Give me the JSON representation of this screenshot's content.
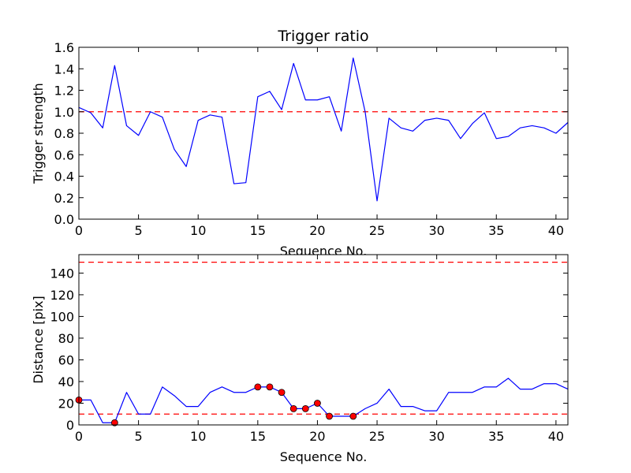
{
  "chart_data": [
    {
      "type": "line",
      "title": "Trigger ratio",
      "xlabel": "Sequence No.",
      "ylabel": "Trigger strength",
      "xlim": [
        0,
        41
      ],
      "ylim": [
        0,
        1.6
      ],
      "xticks": [
        0,
        5,
        10,
        15,
        20,
        25,
        30,
        35,
        40
      ],
      "yticks": [
        0.0,
        0.2,
        0.4,
        0.6,
        0.8,
        1.0,
        1.2,
        1.4,
        1.6
      ],
      "ytick_labels": [
        "0.0",
        "0.2",
        "0.4",
        "0.6",
        "0.8",
        "1.0",
        "1.2",
        "1.4",
        "1.6"
      ],
      "line_color": "#0000ff",
      "threshold_color": "#ff0000",
      "hlines": [
        1.0
      ],
      "series": [
        {
          "name": "trigger strength",
          "x": [
            0,
            1,
            2,
            3,
            4,
            5,
            6,
            7,
            8,
            9,
            10,
            11,
            12,
            13,
            14,
            15,
            16,
            17,
            18,
            19,
            20,
            21,
            22,
            23,
            24,
            25,
            26,
            27,
            28,
            29,
            30,
            31,
            32,
            33,
            34,
            35,
            36,
            37,
            38,
            39,
            40,
            41
          ],
          "y": [
            1.04,
            0.99,
            0.85,
            1.43,
            0.87,
            0.78,
            1.0,
            0.95,
            0.65,
            0.49,
            0.92,
            0.97,
            0.95,
            0.33,
            0.34,
            1.14,
            1.19,
            1.02,
            1.45,
            1.11,
            1.11,
            1.14,
            0.82,
            1.5,
            1.0,
            0.17,
            0.94,
            0.85,
            0.82,
            0.92,
            0.94,
            0.92,
            0.75,
            0.89,
            0.99,
            0.75,
            0.77,
            0.85,
            0.87,
            0.85,
            0.8,
            0.9
          ]
        }
      ],
      "markers": []
    },
    {
      "type": "line",
      "title": "",
      "xlabel": "Sequence No.",
      "ylabel": "Distance [pix]",
      "xlim": [
        0,
        41
      ],
      "ylim": [
        0,
        157
      ],
      "xticks": [
        0,
        5,
        10,
        15,
        20,
        25,
        30,
        35,
        40
      ],
      "yticks": [
        0,
        20,
        40,
        60,
        80,
        100,
        120,
        140
      ],
      "ytick_labels": [
        "0",
        "20",
        "40",
        "60",
        "80",
        "100",
        "120",
        "140"
      ],
      "line_color": "#0000ff",
      "threshold_color": "#ff0000",
      "marker_color": "#ff0000",
      "hlines": [
        10,
        150
      ],
      "series": [
        {
          "name": "distance",
          "x": [
            0,
            1,
            2,
            3,
            4,
            5,
            6,
            7,
            8,
            9,
            10,
            11,
            12,
            13,
            14,
            15,
            16,
            17,
            18,
            19,
            20,
            21,
            22,
            23,
            24,
            25,
            26,
            27,
            28,
            29,
            30,
            31,
            32,
            33,
            34,
            35,
            36,
            37,
            38,
            39,
            40,
            41
          ],
          "y": [
            23,
            23,
            2,
            2,
            30,
            10,
            10,
            35,
            27,
            17,
            17,
            30,
            35,
            30,
            30,
            35,
            35,
            30,
            15,
            15,
            20,
            8,
            8,
            8,
            15,
            20,
            33,
            17,
            17,
            13,
            13,
            30,
            30,
            30,
            35,
            35,
            43,
            33,
            33,
            38,
            38,
            33
          ]
        }
      ],
      "markers": [
        {
          "x": 0,
          "y": 23
        },
        {
          "x": 3,
          "y": 2
        },
        {
          "x": 15,
          "y": 35
        },
        {
          "x": 16,
          "y": 35
        },
        {
          "x": 17,
          "y": 30
        },
        {
          "x": 18,
          "y": 15
        },
        {
          "x": 19,
          "y": 15
        },
        {
          "x": 20,
          "y": 20
        },
        {
          "x": 21,
          "y": 8
        },
        {
          "x": 23,
          "y": 8
        }
      ]
    }
  ]
}
